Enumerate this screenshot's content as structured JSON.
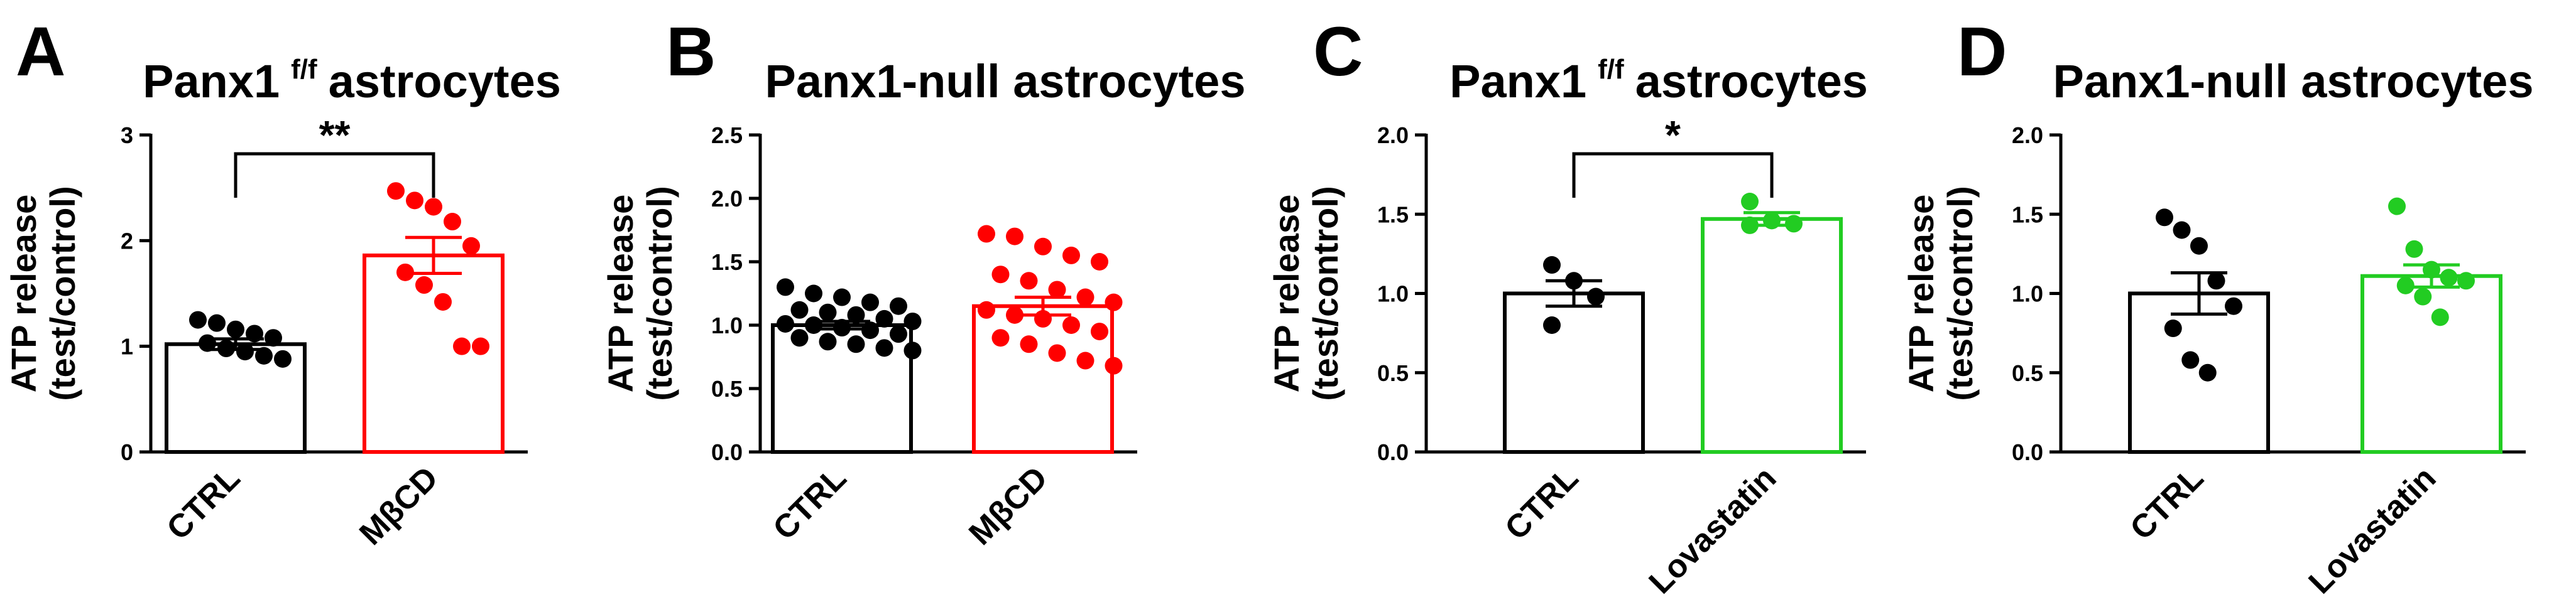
{
  "chart_data": [
    {
      "type": "bar",
      "panel_letter": "A",
      "title": "Panx1",
      "title_superscript": "f/f",
      "title_suffix": "astrocytes",
      "ylabel_line1": "ATP release",
      "ylabel_line2": "(test/control)",
      "ylim": [
        0,
        3
      ],
      "yticks": [
        0,
        1,
        2,
        3
      ],
      "ytick_labels": [
        "0",
        "1",
        "2",
        "3"
      ],
      "categories": [
        "CTRL",
        "MβCD"
      ],
      "colors": [
        "#000000",
        "#ff0000"
      ],
      "values": [
        1.02,
        1.86
      ],
      "sem": [
        0.05,
        0.17
      ],
      "points": [
        [
          1.25,
          1.22,
          1.16,
          1.12,
          1.08,
          1.03,
          0.98,
          0.95,
          0.91,
          0.88
        ],
        [
          2.47,
          2.38,
          2.32,
          2.18,
          1.95,
          1.7,
          1.58,
          1.42,
          1.0,
          1.0
        ]
      ],
      "significance": "**"
    },
    {
      "type": "bar",
      "panel_letter": "B",
      "title": "Panx1-null astrocytes",
      "title_superscript": "",
      "title_suffix": "",
      "ylabel_line1": "ATP release",
      "ylabel_line2": "(test/control)",
      "ylim": [
        0,
        2.5
      ],
      "yticks": [
        0,
        0.5,
        1.0,
        1.5,
        2.0,
        2.5
      ],
      "ytick_labels": [
        "0.0",
        "0.5",
        "1.0",
        "1.5",
        "2.0",
        "2.5"
      ],
      "categories": [
        "CTRL",
        "MβCD"
      ],
      "colors": [
        "#000000",
        "#ff0000"
      ],
      "values": [
        1.0,
        1.15
      ],
      "sem": [
        0.03,
        0.07
      ],
      "points": [
        [
          1.3,
          1.25,
          1.22,
          1.18,
          1.15,
          1.12,
          1.1,
          1.08,
          1.05,
          1.03,
          1.01,
          1.0,
          0.98,
          0.96,
          0.93,
          0.9,
          0.87,
          0.85,
          0.82,
          0.8
        ],
        [
          1.72,
          1.7,
          1.62,
          1.55,
          1.5,
          1.4,
          1.35,
          1.28,
          1.22,
          1.18,
          1.12,
          1.08,
          1.05,
          1.0,
          0.95,
          0.9,
          0.85,
          0.78,
          0.72,
          0.68
        ]
      ],
      "significance": ""
    },
    {
      "type": "bar",
      "panel_letter": "C",
      "title": "Panx1",
      "title_superscript": "f/f",
      "title_suffix": "astrocytes",
      "ylabel_line1": "ATP release",
      "ylabel_line2": "(test/control)",
      "ylim": [
        0,
        2.0
      ],
      "yticks": [
        0,
        0.5,
        1.0,
        1.5,
        2.0
      ],
      "ytick_labels": [
        "0.0",
        "0.5",
        "1.0",
        "1.5",
        "2.0"
      ],
      "categories": [
        "CTRL",
        "Lovastatin"
      ],
      "colors": [
        "#000000",
        "#22cc22"
      ],
      "values": [
        1.0,
        1.47
      ],
      "sem": [
        0.08,
        0.04
      ],
      "points": [
        [
          1.18,
          1.08,
          0.98,
          0.8
        ],
        [
          1.58,
          1.46,
          1.44,
          1.43
        ]
      ],
      "significance": "*"
    },
    {
      "type": "bar",
      "panel_letter": "D",
      "title": "Panx1-null astrocytes",
      "title_superscript": "",
      "title_suffix": "",
      "ylabel_line1": "ATP release",
      "ylabel_line2": "(test/control)",
      "ylim": [
        0,
        2.0
      ],
      "yticks": [
        0,
        0.5,
        1.0,
        1.5,
        2.0
      ],
      "ytick_labels": [
        "0.0",
        "0.5",
        "1.0",
        "1.5",
        "2.0"
      ],
      "categories": [
        "CTRL",
        "Lovastatin"
      ],
      "colors": [
        "#000000",
        "#22cc22"
      ],
      "values": [
        1.0,
        1.11
      ],
      "sem": [
        0.13,
        0.07
      ],
      "points": [
        [
          1.48,
          1.4,
          1.3,
          1.08,
          0.92,
          0.78,
          0.58,
          0.5
        ],
        [
          1.55,
          1.28,
          1.15,
          1.1,
          1.08,
          1.05,
          0.98,
          0.85
        ]
      ],
      "significance": ""
    }
  ]
}
